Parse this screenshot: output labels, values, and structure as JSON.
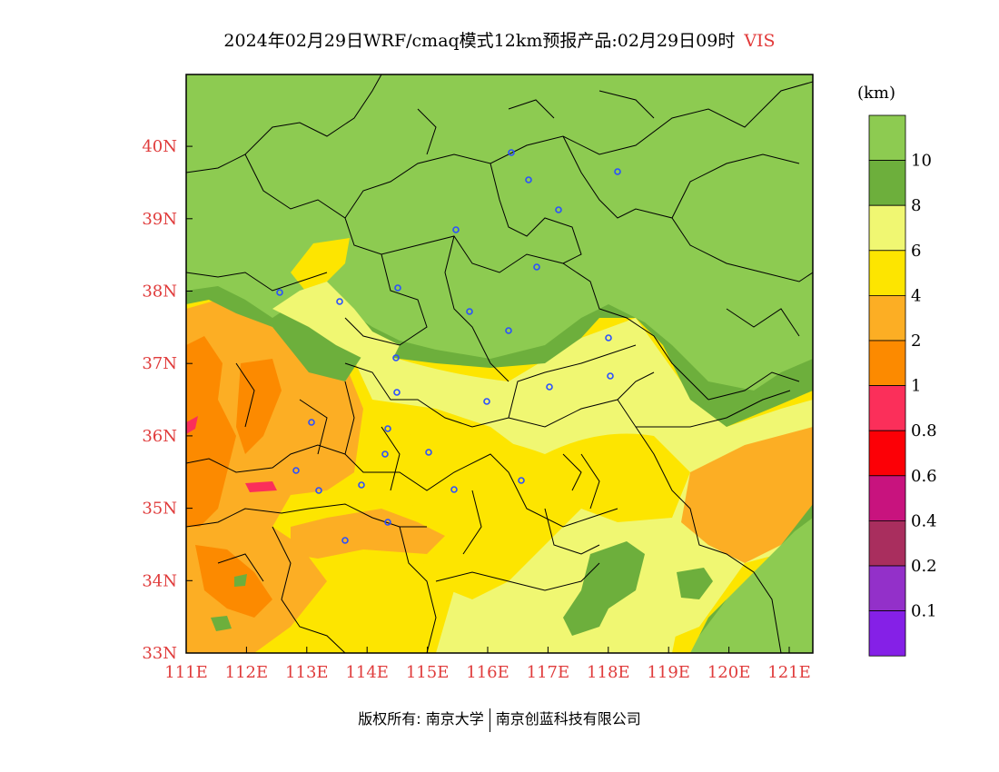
{
  "title": {
    "main": "2024年02月29日WRF/cmaq模式12km预报产品:02月29日09时",
    "variable": "VIS"
  },
  "legend": {
    "unit": "(km)",
    "bins": [
      {
        "color": "#8dcb51",
        "label": "10"
      },
      {
        "color": "#6daf3c",
        "label": "8"
      },
      {
        "color": "#f0f772",
        "label": "6"
      },
      {
        "color": "#fde500",
        "label": "4"
      },
      {
        "color": "#fcae24",
        "label": "2"
      },
      {
        "color": "#fc8a00",
        "label": "1"
      },
      {
        "color": "#fb2f5a",
        "label": "0.8"
      },
      {
        "color": "#fc0006",
        "label": "0.6"
      },
      {
        "color": "#c8137e",
        "label": "0.4"
      },
      {
        "color": "#a92e5e",
        "label": "0.2"
      },
      {
        "color": "#9330c9",
        "label": "0.1"
      },
      {
        "color": "#8520e7",
        "label": ""
      }
    ]
  },
  "axes": {
    "lon_labels": [
      "111E",
      "112E",
      "113E",
      "114E",
      "115E",
      "116E",
      "117E",
      "118E",
      "119E",
      "120E",
      "121E"
    ],
    "lat_labels": [
      "33N",
      "34N",
      "35N",
      "36N",
      "37N",
      "38N",
      "39N",
      "40N"
    ]
  },
  "footer": {
    "copyright": "版权所有: 南京大学",
    "company": "南京创蓝科技有限公司"
  },
  "colors": {
    "axis_label": "#e03c3c",
    "station_marker": "#2b50ff",
    "boundary": "#000000"
  }
}
